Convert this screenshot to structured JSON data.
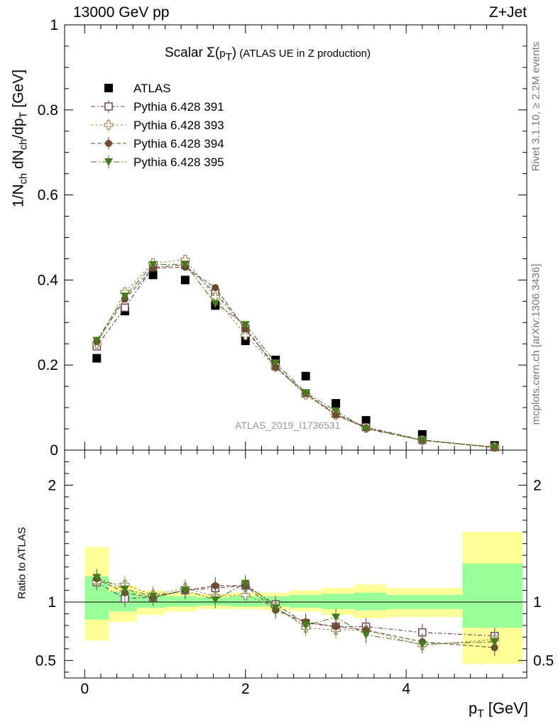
{
  "header": {
    "left_label": "13000 GeV pp",
    "right_label": "Z+Jet",
    "side_label_top": "Rivet 3.1.10, ≥ 2.2M events",
    "side_label_bottom": "mcplots.cern.ch [arXiv:1306.3436]",
    "watermark": "ATLAS_2019_I1736531"
  },
  "chart_data": [
    {
      "type": "scatter",
      "title": "Scalar Σ(pT) (ATLAS UE in Z production)",
      "title_parts": {
        "symbol": "Scalar Σ(",
        "var": "p",
        "sub": "T",
        "close": ")",
        "rest": " (ATLAS UE in Z production)"
      },
      "ylabel": "1/Nch dNch/dpT [GeV]",
      "ylabel_parts": {
        "a": "1/N",
        "b": "ch",
        "c": " dN",
        "d": "ch",
        "e": "/dp",
        "f": "T",
        "g": " [GeV]"
      },
      "xlabel": "pT [GeV]",
      "xlabel_parts": {
        "a": "p",
        "b": "T",
        "c": " [GeV]"
      },
      "xlim": [
        -0.25,
        5.5
      ],
      "ylim": [
        0,
        1.0
      ],
      "yticks": [
        "0",
        "0.2",
        "0.4",
        "0.6",
        "0.8",
        "1"
      ],
      "legend_position": "top-left",
      "x": [
        0.15,
        0.5,
        0.85,
        1.25,
        1.625,
        2.0,
        2.375,
        2.75,
        3.125,
        3.5,
        4.2,
        5.1
      ],
      "series": [
        {
          "name": "ATLAS",
          "color": "#000000",
          "marker": "square-filled",
          "values": [
            0.216,
            0.327,
            0.412,
            0.4,
            0.34,
            0.257,
            0.212,
            0.174,
            0.11,
            0.07,
            0.037,
            0.011
          ]
        },
        {
          "name": "Pythia 6.428 391",
          "color": "#6b3b54",
          "marker": "square-open",
          "values": [
            0.244,
            0.335,
            0.43,
            0.435,
            0.37,
            0.286,
            0.197,
            0.133,
            0.085,
            0.054,
            0.024,
            0.007
          ]
        },
        {
          "name": "Pythia 6.428 393",
          "color": "#9b8a55",
          "marker": "cross-open",
          "values": [
            0.25,
            0.372,
            0.44,
            0.448,
            0.36,
            0.27,
            0.195,
            0.13,
            0.082,
            0.052,
            0.023,
            0.007
          ]
        },
        {
          "name": "Pythia 6.428 394",
          "color": "#6e4a30",
          "marker": "circle-filled",
          "values": [
            0.255,
            0.355,
            0.428,
            0.43,
            0.382,
            0.285,
            0.195,
            0.133,
            0.083,
            0.052,
            0.023,
            0.006
          ]
        },
        {
          "name": "Pythia 6.428 395",
          "color": "#4a7a1e",
          "marker": "triangle-down-filled",
          "values": [
            0.258,
            0.362,
            0.436,
            0.437,
            0.345,
            0.295,
            0.205,
            0.135,
            0.092,
            0.05,
            0.023,
            0.007
          ]
        }
      ]
    },
    {
      "type": "scatter",
      "ylabel": "Ratio to ATLAS",
      "xlim": [
        -0.25,
        5.5
      ],
      "ylim": [
        0.35,
        2.3
      ],
      "yticks": [
        "0.5",
        "1",
        "2"
      ],
      "xticks": [
        "0",
        "2",
        "4"
      ],
      "x": [
        0.15,
        0.5,
        0.85,
        1.25,
        1.625,
        2.0,
        2.375,
        2.75,
        3.125,
        3.5,
        4.2,
        5.1
      ],
      "bins": [
        [
          0.0,
          0.3
        ],
        [
          0.3,
          0.65
        ],
        [
          0.65,
          1.0
        ],
        [
          1.0,
          1.4
        ],
        [
          1.4,
          1.8
        ],
        [
          1.8,
          2.2
        ],
        [
          2.2,
          2.55
        ],
        [
          2.55,
          2.95
        ],
        [
          2.95,
          3.35
        ],
        [
          3.35,
          3.75
        ],
        [
          3.75,
          4.7
        ],
        [
          4.7,
          5.45
        ]
      ],
      "band_total": [
        [
          0.67,
          1.47
        ],
        [
          0.83,
          1.14
        ],
        [
          0.89,
          1.1
        ],
        [
          0.92,
          1.08
        ],
        [
          0.94,
          1.07
        ],
        [
          0.94,
          1.08
        ],
        [
          0.93,
          1.08
        ],
        [
          0.92,
          1.1
        ],
        [
          0.89,
          1.12
        ],
        [
          0.86,
          1.15
        ],
        [
          0.87,
          1.12
        ],
        [
          0.47,
          1.6
        ]
      ],
      "band_stat": [
        [
          0.85,
          1.22
        ],
        [
          0.92,
          1.09
        ],
        [
          0.95,
          1.06
        ],
        [
          0.96,
          1.05
        ],
        [
          0.97,
          1.04
        ],
        [
          0.96,
          1.05
        ],
        [
          0.96,
          1.05
        ],
        [
          0.95,
          1.06
        ],
        [
          0.94,
          1.07
        ],
        [
          0.93,
          1.08
        ],
        [
          0.94,
          1.06
        ],
        [
          0.78,
          1.33
        ]
      ],
      "series": [
        {
          "name": "Pythia 6.428 391",
          "values": [
            1.17,
            1.03,
            1.04,
            1.1,
            1.12,
            1.14,
            0.98,
            0.82,
            0.79,
            0.79,
            0.74,
            0.71
          ]
        },
        {
          "name": "Pythia 6.428 393",
          "values": [
            1.17,
            1.15,
            1.06,
            1.12,
            1.05,
            1.06,
            0.96,
            0.78,
            0.76,
            0.76,
            0.63,
            0.68
          ]
        },
        {
          "name": "Pythia 6.428 394",
          "values": [
            1.2,
            1.08,
            1.04,
            1.1,
            1.14,
            1.14,
            0.93,
            0.83,
            0.79,
            0.76,
            0.66,
            0.61
          ]
        },
        {
          "name": "Pythia 6.428 395",
          "values": [
            1.21,
            1.11,
            1.05,
            1.1,
            1.02,
            1.16,
            0.95,
            0.8,
            0.87,
            0.72,
            0.64,
            0.66
          ]
        }
      ]
    }
  ]
}
